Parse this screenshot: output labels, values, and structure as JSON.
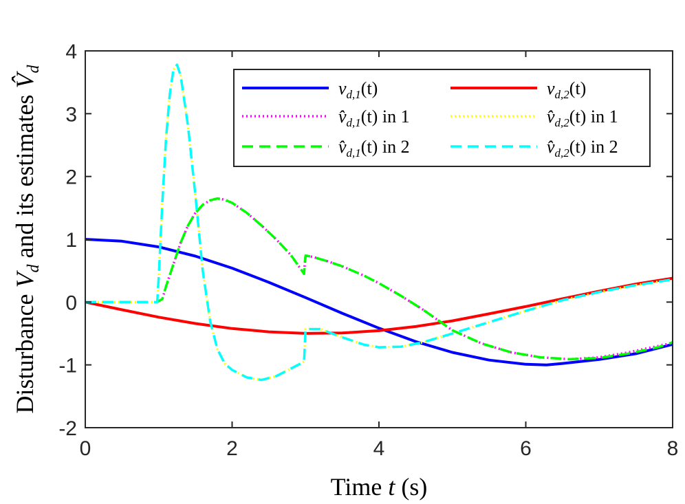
{
  "chart_data": {
    "type": "line",
    "title": "",
    "xlabel": {
      "prefix": "Time ",
      "var": "t",
      "suffix": " (s)"
    },
    "ylabel": {
      "prefix": "Disturbance ",
      "var1": "V",
      "sub1": "d",
      "middle": " and its estimates ",
      "var2": "V̂",
      "sub2": "d"
    },
    "xlim": [
      0,
      8
    ],
    "ylim": [
      -2,
      4
    ],
    "xticks": [
      "0",
      "2",
      "4",
      "6",
      "8"
    ],
    "yticks": [
      "-2",
      "-1",
      "0",
      "1",
      "2",
      "3",
      "4"
    ],
    "legend_position": "top-right",
    "series": [
      {
        "name": "v_{d,1}(t)",
        "legend": {
          "var": "v",
          "sub": "d,1",
          "arg": "(t)",
          "suffix": ""
        },
        "color": "#0000ff",
        "style": "solid",
        "x": [
          0,
          0.5,
          1,
          1.5,
          2,
          2.5,
          3,
          3.5,
          4,
          4.5,
          5,
          5.5,
          6,
          6.283,
          6.5,
          7,
          7.5,
          8
        ],
        "y": [
          1,
          0.969,
          0.878,
          0.732,
          0.54,
          0.315,
          0.071,
          -0.178,
          -0.416,
          -0.629,
          -0.801,
          -0.924,
          -0.99,
          -1,
          -0.977,
          -0.914,
          -0.822,
          -0.673
        ]
      },
      {
        "name": "v_{d,2}(t)",
        "legend": {
          "var": "v",
          "sub": "d,2",
          "arg": "(t)",
          "suffix": ""
        },
        "color": "#ff0000",
        "style": "solid",
        "x": [
          0,
          0.5,
          1,
          1.5,
          2,
          2.5,
          3,
          3.5,
          4,
          4.5,
          5,
          5.5,
          6,
          6.5,
          7,
          7.5,
          8
        ],
        "y": [
          0,
          -0.122,
          -0.24,
          -0.341,
          -0.421,
          -0.474,
          -0.499,
          -0.492,
          -0.455,
          -0.389,
          -0.299,
          -0.187,
          -0.071,
          0.054,
          0.175,
          0.287,
          0.38
        ]
      },
      {
        "name": "v̂_{d,1}(t) in 1",
        "legend": {
          "var": "v̂",
          "sub": "d,1",
          "arg": "(t)",
          "suffix": " in 1"
        },
        "color": "#ff00ff",
        "style": "dotted",
        "x": [
          0,
          0.5,
          0.98,
          1.05,
          1.1,
          1.2,
          1.3,
          1.4,
          1.5,
          1.6,
          1.7,
          1.8,
          1.9,
          2.0,
          2.2,
          2.4,
          2.6,
          2.8,
          2.98,
          2.99,
          3.0,
          3.1,
          3.3,
          3.5,
          3.8,
          4.0,
          4.3,
          4.6,
          5.0,
          5.4,
          5.8,
          6.2,
          6.6,
          7.0,
          7.4,
          7.8,
          8.0
        ],
        "y": [
          0,
          0,
          0,
          0.05,
          0.25,
          0.6,
          0.95,
          1.22,
          1.42,
          1.55,
          1.62,
          1.65,
          1.63,
          1.58,
          1.42,
          1.22,
          1.0,
          0.75,
          0.45,
          0.62,
          0.74,
          0.72,
          0.65,
          0.57,
          0.42,
          0.3,
          0.1,
          -0.12,
          -0.45,
          -0.66,
          -0.8,
          -0.88,
          -0.91,
          -0.88,
          -0.8,
          -0.7,
          -0.65
        ]
      },
      {
        "name": "v̂_{d,2}(t) in 1",
        "legend": {
          "var": "v̂",
          "sub": "d,2",
          "arg": "(t)",
          "suffix": " in 1"
        },
        "color": "#ffff00",
        "style": "dotted",
        "x": [
          0,
          0.5,
          0.98,
          1.0,
          1.05,
          1.1,
          1.15,
          1.2,
          1.25,
          1.3,
          1.4,
          1.5,
          1.6,
          1.7,
          1.8,
          1.9,
          2.0,
          2.2,
          2.4,
          2.6,
          2.8,
          2.98,
          3.0,
          3.2,
          3.5,
          3.8,
          4.0,
          4.3,
          4.6,
          5.0,
          5.5,
          6.0,
          6.5,
          7.0,
          7.5,
          8.0
        ],
        "y": [
          0,
          0,
          0,
          0.4,
          1.6,
          2.6,
          3.3,
          3.7,
          3.78,
          3.6,
          2.8,
          1.7,
          0.5,
          -0.3,
          -0.75,
          -0.98,
          -1.08,
          -1.2,
          -1.24,
          -1.18,
          -1.06,
          -0.95,
          -0.43,
          -0.43,
          -0.56,
          -0.68,
          -0.72,
          -0.71,
          -0.64,
          -0.5,
          -0.32,
          -0.14,
          0.03,
          0.16,
          0.27,
          0.36
        ]
      },
      {
        "name": "v̂_{d,1}(t) in 2",
        "legend": {
          "var": "v̂",
          "sub": "d,1",
          "arg": "(t)",
          "suffix": " in 2"
        },
        "color": "#00ff00",
        "style": "dashed",
        "x": [
          0,
          0.5,
          0.98,
          1.05,
          1.1,
          1.2,
          1.3,
          1.4,
          1.5,
          1.6,
          1.7,
          1.8,
          1.9,
          2.0,
          2.2,
          2.4,
          2.6,
          2.8,
          2.98,
          2.99,
          3.0,
          3.1,
          3.3,
          3.5,
          3.8,
          4.0,
          4.3,
          4.6,
          5.0,
          5.4,
          5.8,
          6.2,
          6.6,
          7.0,
          7.4,
          7.8,
          8.0
        ],
        "y": [
          0,
          0,
          0,
          0.05,
          0.25,
          0.6,
          0.95,
          1.22,
          1.42,
          1.55,
          1.62,
          1.65,
          1.63,
          1.58,
          1.42,
          1.22,
          1.0,
          0.75,
          0.45,
          0.62,
          0.74,
          0.72,
          0.65,
          0.57,
          0.42,
          0.3,
          0.1,
          -0.12,
          -0.45,
          -0.66,
          -0.8,
          -0.88,
          -0.91,
          -0.89,
          -0.82,
          -0.72,
          -0.64
        ]
      },
      {
        "name": "v̂_{d,2}(t) in 2",
        "legend": {
          "var": "v̂",
          "sub": "d,2",
          "arg": "(t)",
          "suffix": " in 2"
        },
        "color": "#00ffff",
        "style": "dashed",
        "x": [
          0,
          0.5,
          0.98,
          1.0,
          1.05,
          1.1,
          1.15,
          1.2,
          1.25,
          1.3,
          1.4,
          1.5,
          1.6,
          1.7,
          1.8,
          1.9,
          2.0,
          2.2,
          2.4,
          2.6,
          2.8,
          2.98,
          3.0,
          3.2,
          3.5,
          3.8,
          4.0,
          4.3,
          4.6,
          5.0,
          5.5,
          6.0,
          6.5,
          7.0,
          7.5,
          8.0
        ],
        "y": [
          0,
          0,
          0,
          0.4,
          1.6,
          2.6,
          3.3,
          3.7,
          3.78,
          3.6,
          2.8,
          1.7,
          0.5,
          -0.3,
          -0.75,
          -0.98,
          -1.08,
          -1.2,
          -1.24,
          -1.18,
          -1.06,
          -0.95,
          -0.43,
          -0.43,
          -0.56,
          -0.68,
          -0.72,
          -0.71,
          -0.64,
          -0.5,
          -0.32,
          -0.14,
          0.03,
          0.16,
          0.27,
          0.36
        ]
      }
    ]
  }
}
